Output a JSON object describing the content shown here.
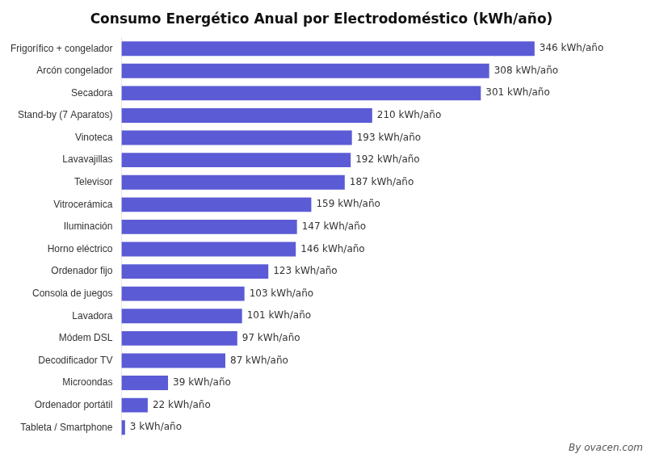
{
  "chart_data": {
    "type": "bar",
    "orientation": "horizontal",
    "title": "Consumo Energético Anual por Electrodoméstico (kWh/año)",
    "categories": [
      "Frigorífico + congelador",
      "Arcón congelador",
      "Secadora",
      "Stand-by (7 Aparatos)",
      "Vinoteca",
      "Lavavajillas",
      "Televisor",
      "Vitrocerámica",
      "Iluminación",
      "Horno eléctrico",
      "Ordenador fijo",
      "Consola de juegos",
      "Lavadora",
      "Módem DSL",
      "Decodificador TV",
      "Microondas",
      "Ordenador portátil",
      "Tableta / Smartphone"
    ],
    "values": [
      346,
      308,
      301,
      210,
      193,
      192,
      187,
      159,
      147,
      146,
      123,
      103,
      101,
      97,
      87,
      39,
      22,
      3
    ],
    "value_labels": [
      "346 kWh/año",
      "308 kWh/año",
      "301 kWh/año",
      "210 kWh/año",
      "193 kWh/año",
      "192 kWh/año",
      "187 kWh/año",
      "159 kWh/año",
      "147 kWh/año",
      "146 kWh/año",
      "123 kWh/año",
      "103 kWh/año",
      "101 kWh/año",
      "97 kWh/año",
      "87 kWh/año",
      "39 kWh/año",
      "22 kWh/año",
      "3 kWh/año"
    ],
    "data_labels": true,
    "color": "#5b5bd6",
    "xlim": [
      0,
      430
    ],
    "tick_labels": "y",
    "grid": false,
    "annotations": [
      "By ovacen.com"
    ]
  }
}
